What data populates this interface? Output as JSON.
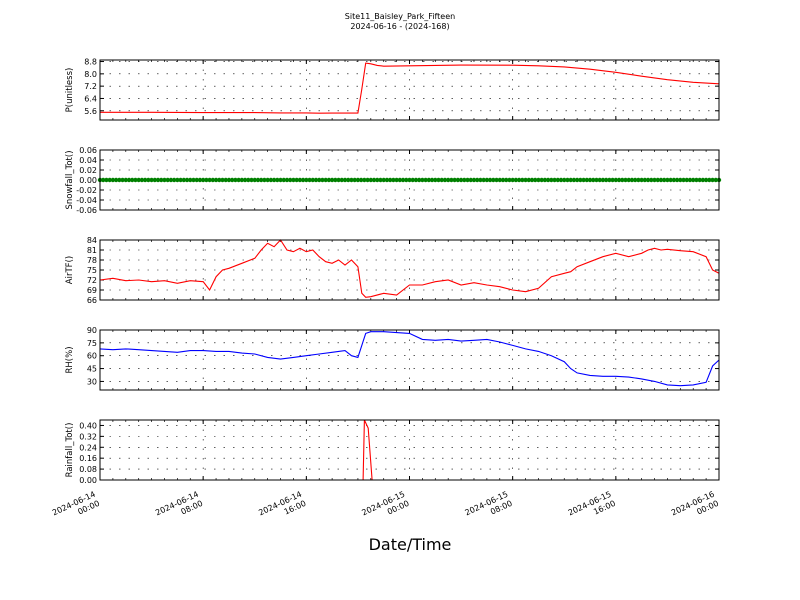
{
  "title_line1": "Site11_Baisley_Park_Fifteen",
  "title_line2": "2024-06-16 - (2024-168)",
  "xlabel": "Date/Time",
  "x_ticks": [
    {
      "t": 0,
      "l1": "2024-06-14",
      "l2": "00:00"
    },
    {
      "t": 8,
      "l1": "2024-06-14",
      "l2": "08:00"
    },
    {
      "t": 16,
      "l1": "2024-06-14",
      "l2": "16:00"
    },
    {
      "t": 24,
      "l1": "2024-06-15",
      "l2": "00:00"
    },
    {
      "t": 32,
      "l1": "2024-06-15",
      "l2": "08:00"
    },
    {
      "t": 40,
      "l1": "2024-06-15",
      "l2": "16:00"
    },
    {
      "t": 48,
      "l1": "2024-06-16",
      "l2": "00:00"
    }
  ],
  "chart_data": [
    {
      "type": "line",
      "ylabel": "P(unitless)",
      "color": "#ff0000",
      "ylim": [
        5.0,
        8.9
      ],
      "yticks": [
        "5.6",
        "6.4",
        "7.2",
        "8.0",
        "8.8"
      ],
      "x": [
        0,
        4,
        8,
        12,
        14,
        16,
        17,
        18,
        19,
        20,
        20.3,
        20.6,
        21,
        21.5,
        22,
        24,
        28,
        32,
        34,
        36,
        38,
        40,
        42,
        44,
        46,
        48
      ],
      "values": [
        5.5,
        5.5,
        5.48,
        5.48,
        5.46,
        5.46,
        5.44,
        5.45,
        5.45,
        5.45,
        7.0,
        8.7,
        8.65,
        8.55,
        8.5,
        8.52,
        8.57,
        8.56,
        8.52,
        8.45,
        8.3,
        8.1,
        7.85,
        7.62,
        7.45,
        7.35
      ],
      "grid": true
    },
    {
      "type": "scatter",
      "ylabel": "Snowfall_Tot()",
      "color": "#008000",
      "ylim": [
        -0.06,
        0.06
      ],
      "yticks": [
        "-0.06",
        "-0.04",
        "-0.02",
        "0.00",
        "0.02",
        "0.04",
        "0.06"
      ],
      "x_range": [
        0,
        48
      ],
      "constant_value": 0.0,
      "grid": true
    },
    {
      "type": "line",
      "ylabel": "AirTF()",
      "color": "#ff0000",
      "ylim": [
        66,
        84
      ],
      "yticks": [
        "66",
        "69",
        "72",
        "75",
        "78",
        "81",
        "84"
      ],
      "x": [
        0,
        1,
        2,
        3,
        4,
        5,
        6,
        7,
        8,
        8.5,
        9,
        9.5,
        10,
        11,
        12,
        12.5,
        13,
        13.5,
        14,
        14.5,
        15,
        15.5,
        16,
        16.5,
        17,
        17.5,
        18,
        18.5,
        19,
        19.5,
        20,
        20.3,
        20.6,
        21,
        22,
        23,
        24,
        25,
        26,
        27,
        28,
        29,
        30,
        31,
        32,
        33,
        34,
        35,
        36,
        36.5,
        37,
        38,
        39,
        40,
        41,
        42,
        42.5,
        43,
        43.5,
        44,
        45,
        46,
        47,
        47.5,
        48
      ],
      "values": [
        72,
        72.5,
        71.8,
        72,
        71.5,
        71.8,
        71,
        71.8,
        71.5,
        69,
        73,
        75,
        75.5,
        77,
        78.5,
        81,
        83,
        82,
        84,
        81,
        80.5,
        81.5,
        80.5,
        81,
        79,
        77.5,
        77,
        78,
        76.5,
        78,
        76,
        68,
        66.8,
        67,
        68,
        67.5,
        70.5,
        70.5,
        71.5,
        72,
        70.5,
        71.2,
        70.5,
        70,
        69,
        68.5,
        69.5,
        73,
        74,
        74.5,
        76,
        77.5,
        79,
        80,
        79,
        80,
        81,
        81.5,
        81,
        81.2,
        80.8,
        80.5,
        79,
        75,
        74
      ]
    },
    {
      "type": "line",
      "ylabel": "RH(%)",
      "color": "#0000ff",
      "ylim": [
        20,
        90
      ],
      "yticks": [
        "30",
        "45",
        "60",
        "75",
        "90"
      ],
      "x": [
        0,
        1,
        2,
        3,
        4,
        5,
        6,
        7,
        8,
        9,
        10,
        11,
        12,
        13,
        14,
        15,
        16,
        17,
        18,
        19,
        19.5,
        20,
        20.3,
        20.6,
        21,
        22,
        23,
        24,
        25,
        26,
        27,
        28,
        29,
        30,
        31,
        32,
        33,
        34,
        35,
        36,
        36.5,
        37,
        38,
        39,
        40,
        41,
        42,
        43,
        44,
        45,
        46,
        47,
        47.5,
        48
      ],
      "values": [
        68,
        67,
        68,
        67,
        66,
        65,
        64,
        66,
        66,
        65,
        65,
        63,
        62,
        58,
        56,
        58,
        60,
        62,
        64,
        66,
        60,
        58,
        72,
        86,
        88,
        88,
        87,
        86,
        79,
        78,
        79,
        77,
        78,
        79,
        76,
        72,
        68,
        65,
        60,
        53,
        45,
        40,
        37,
        36,
        36,
        35,
        33,
        30,
        26,
        25,
        26,
        29,
        48,
        55
      ],
      "grid": true
    },
    {
      "type": "line",
      "ylabel": "Rainfall_Tot()",
      "color": "#ff0000",
      "ylim": [
        0.0,
        0.44
      ],
      "yticks": [
        "0.00",
        "0.08",
        "0.16",
        "0.24",
        "0.32",
        "0.40"
      ],
      "x": [
        0,
        20.4,
        20.5,
        20.8,
        21.1,
        21.3,
        48
      ],
      "values": [
        0,
        0,
        0.44,
        0.38,
        0.0,
        0,
        0
      ],
      "grid": true
    }
  ]
}
